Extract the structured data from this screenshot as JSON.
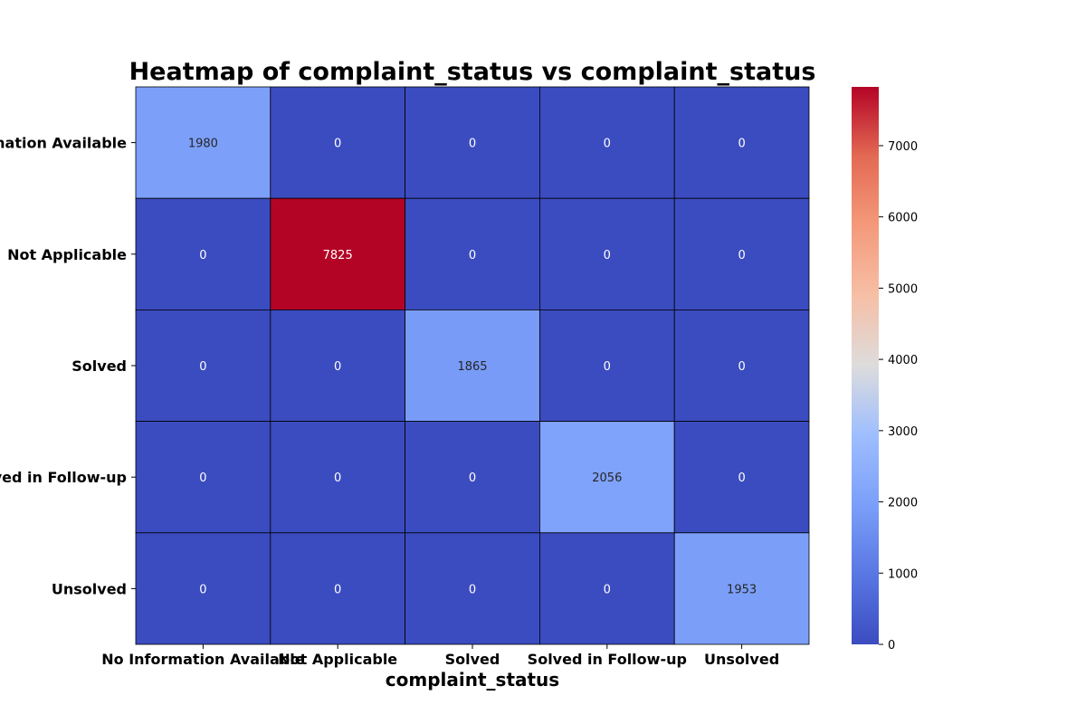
{
  "chart_data": {
    "type": "heatmap",
    "title": "Heatmap of complaint_status vs complaint_status",
    "xlabel": "complaint_status",
    "ylabel": "",
    "x_categories": [
      "No Information Available",
      "Not Applicable",
      "Solved",
      "Solved in Follow-up",
      "Unsolved"
    ],
    "y_categories": [
      "No Information Available",
      "Not Applicable",
      "Solved",
      "Solved in Follow-up",
      "Unsolved"
    ],
    "values": [
      [
        1980,
        0,
        0,
        0,
        0
      ],
      [
        0,
        7825,
        0,
        0,
        0
      ],
      [
        0,
        0,
        1865,
        0,
        0
      ],
      [
        0,
        0,
        0,
        2056,
        0
      ],
      [
        0,
        0,
        0,
        0,
        1953
      ]
    ],
    "colormap": "coolwarm",
    "colorbar": {
      "range": [
        0,
        7825
      ],
      "ticks": [
        0,
        1000,
        2000,
        3000,
        4000,
        5000,
        6000,
        7000
      ]
    },
    "grid": true,
    "legend": "colorbar-right"
  }
}
